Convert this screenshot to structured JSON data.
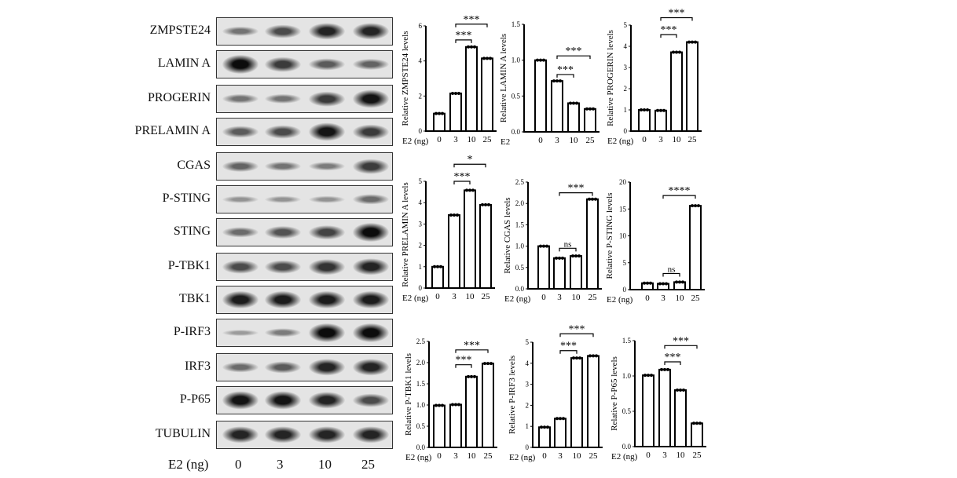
{
  "blots": {
    "rows": [
      {
        "label": "ZMPSTE24",
        "density": [
          0.35,
          0.6,
          0.85,
          0.85
        ]
      },
      {
        "label": "LAMIN A",
        "density": [
          1.0,
          0.7,
          0.5,
          0.45
        ]
      },
      {
        "label": "PROGERIN",
        "density": [
          0.35,
          0.35,
          0.7,
          0.95
        ]
      },
      {
        "label": "PRELAMIN A",
        "density": [
          0.5,
          0.6,
          0.95,
          0.7
        ]
      },
      {
        "label": "CGAS",
        "density": [
          0.45,
          0.35,
          0.3,
          0.7
        ]
      },
      {
        "label": "P-STING",
        "density": [
          0.15,
          0.15,
          0.15,
          0.4
        ]
      },
      {
        "label": "STING",
        "density": [
          0.4,
          0.55,
          0.65,
          1.0
        ]
      },
      {
        "label": "P-TBK1",
        "density": [
          0.6,
          0.6,
          0.75,
          0.85
        ]
      },
      {
        "label": "TBK1",
        "density": [
          0.9,
          0.9,
          0.9,
          0.9
        ]
      },
      {
        "label": "P-IRF3",
        "density": [
          0.1,
          0.3,
          1.0,
          1.0
        ]
      },
      {
        "label": "IRF3",
        "density": [
          0.4,
          0.5,
          0.85,
          0.85
        ]
      },
      {
        "label": "P-P65",
        "density": [
          0.95,
          0.95,
          0.85,
          0.6
        ]
      },
      {
        "label": "TUBULIN",
        "density": [
          0.85,
          0.85,
          0.85,
          0.85
        ]
      }
    ],
    "xlabel": "E2 (ng)",
    "lanes": [
      "0",
      "3",
      "10",
      "25"
    ]
  },
  "chart_data": [
    {
      "type": "bar",
      "ylabel": "Relative ZMPSTE24 levels",
      "xlabel": "E2 (ng)",
      "categories": [
        "0",
        "3",
        "10",
        "25"
      ],
      "values": [
        1.0,
        2.15,
        4.8,
        4.15
      ],
      "ylim": [
        0,
        6
      ],
      "yticks": [
        "0",
        "2",
        "4",
        "6"
      ],
      "sig": [
        [
          1,
          2,
          5.2,
          "***"
        ],
        [
          1,
          3,
          6.1,
          "***"
        ]
      ]
    },
    {
      "type": "bar",
      "ylabel": "Relative LAMIN A levels",
      "xlabel": "E2",
      "categories": [
        "0",
        "3",
        "10",
        "25"
      ],
      "values": [
        1.0,
        0.71,
        0.4,
        0.32
      ],
      "ylim": [
        0,
        1.5
      ],
      "yticks": [
        "0.0",
        "0.5",
        "1.0",
        "1.5"
      ],
      "sig": [
        [
          1,
          2,
          0.8,
          "***"
        ],
        [
          1,
          3,
          1.06,
          "***"
        ]
      ]
    },
    {
      "type": "bar",
      "ylabel": "Relative PROGERIN levels",
      "xlabel": "E2 (ng)",
      "categories": [
        "0",
        "3",
        "10",
        "25"
      ],
      "values": [
        1.0,
        0.97,
        3.72,
        4.2
      ],
      "ylim": [
        0,
        5
      ],
      "yticks": [
        "0",
        "1",
        "2",
        "3",
        "4",
        "5"
      ],
      "sig": [
        [
          1,
          2,
          4.55,
          "***"
        ],
        [
          1,
          3,
          5.35,
          "***"
        ]
      ]
    },
    {
      "type": "bar",
      "ylabel": "Relative PRELAMIN A levels",
      "xlabel": "E2 (ng)",
      "categories": [
        "0",
        "3",
        "10",
        "25"
      ],
      "values": [
        1.0,
        3.42,
        4.58,
        3.9
      ],
      "ylim": [
        0,
        5
      ],
      "yticks": [
        "0",
        "1",
        "2",
        "3",
        "4",
        "5"
      ],
      "sig": [
        [
          1,
          2,
          5.0,
          "***"
        ],
        [
          1,
          3,
          5.8,
          "*"
        ]
      ]
    },
    {
      "type": "bar",
      "ylabel": "Relative CGAS levels",
      "xlabel": "E2 (ng)",
      "categories": [
        "0",
        "3",
        "10",
        "25"
      ],
      "values": [
        1.0,
        0.72,
        0.77,
        2.1
      ],
      "ylim": [
        0,
        2.5
      ],
      "yticks": [
        "0.0",
        "0.5",
        "1.0",
        "1.5",
        "2.0",
        "2.5"
      ],
      "sig": [
        [
          1,
          2,
          0.95,
          "ns"
        ],
        [
          1,
          3,
          2.25,
          "***"
        ]
      ]
    },
    {
      "type": "bar",
      "ylabel": "Relative P-STING levels",
      "xlabel": "E2 (ng)",
      "categories": [
        "0",
        "3",
        "10",
        "25"
      ],
      "values": [
        1.2,
        1.1,
        1.4,
        15.6
      ],
      "ylim": [
        0,
        20
      ],
      "yticks": [
        "0",
        "5",
        "10",
        "15",
        "20"
      ],
      "sig": [
        [
          1,
          2,
          3.0,
          "ns"
        ],
        [
          1,
          3,
          17.5,
          "****"
        ]
      ]
    },
    {
      "type": "bar",
      "ylabel": "Relative P-TBK1 levels",
      "xlabel": "E2 (ng)",
      "categories": [
        "0",
        "3",
        "10",
        "25"
      ],
      "values": [
        0.99,
        1.01,
        1.67,
        1.98
      ],
      "ylim": [
        0,
        2.5
      ],
      "yticks": [
        "0.0",
        "0.5",
        "1.0",
        "1.5",
        "2.0",
        "2.5"
      ],
      "sig": [
        [
          1,
          2,
          1.95,
          "***"
        ],
        [
          1,
          3,
          2.3,
          "***"
        ]
      ]
    },
    {
      "type": "bar",
      "ylabel": "Relative P-IRF3 levels",
      "xlabel": "E2 (ng)",
      "categories": [
        "0",
        "3",
        "10",
        "25"
      ],
      "values": [
        0.96,
        1.37,
        4.25,
        4.35
      ],
      "ylim": [
        0,
        5
      ],
      "yticks": [
        "0",
        "1",
        "2",
        "3",
        "4",
        "5"
      ],
      "sig": [
        [
          1,
          2,
          4.6,
          "***"
        ],
        [
          1,
          3,
          5.4,
          "***"
        ]
      ]
    },
    {
      "type": "bar",
      "ylabel": "Relative P-P65 levels",
      "xlabel": "E2 (ng)",
      "categories": [
        "0",
        "3",
        "10",
        "25"
      ],
      "values": [
        1.01,
        1.09,
        0.8,
        0.33
      ],
      "ylim": [
        0,
        1.5
      ],
      "yticks": [
        "0.0",
        "0.5",
        "1.0",
        "1.5"
      ],
      "sig": [
        [
          1,
          2,
          1.2,
          "***"
        ],
        [
          1,
          3,
          1.43,
          "***"
        ]
      ]
    }
  ]
}
